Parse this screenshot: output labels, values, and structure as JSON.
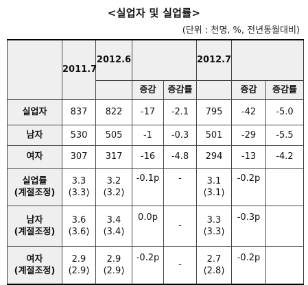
{
  "title": "<실업자 및 실업률>",
  "unit": "(단위 : 천명, %, 전년동월대비)",
  "headers": {
    "period_2011": "2011.7",
    "period_2012_6": "2012.6",
    "period_2012_7": "2012.7",
    "change": "증감",
    "change_rate": "증감률"
  },
  "rows": [
    {
      "label": "실업자",
      "v2011": "837",
      "v2012_6": "822",
      "change1": "-17",
      "rate1": "-2.1",
      "v2012_7": "795",
      "change2": "-42",
      "rate2": "-5.0"
    },
    {
      "label": "남자",
      "v2011": "530",
      "v2012_6": "505",
      "change1": "-1",
      "rate1": "-0.3",
      "v2012_7": "501",
      "change2": "-29",
      "rate2": "-5.5"
    },
    {
      "label": "여자",
      "v2011": "307",
      "v2012_6": "317",
      "change1": "-16",
      "rate1": "-4.8",
      "v2012_7": "294",
      "change2": "-13",
      "rate2": "-4.2"
    },
    {
      "label": "실업률",
      "label_sub": "(계절조정)",
      "v2011": "3.3",
      "v2011_sa": "(3.3)",
      "v2012_6": "3.2",
      "v2012_6_sa": "(3.2)",
      "change1": "-0.1p",
      "rate1": "-",
      "v2012_7": "3.1",
      "v2012_7_sa": "(3.1)",
      "change2": "-0.2p",
      "rate2": ""
    },
    {
      "label": "남자",
      "label_sub": "(계절조정)",
      "v2011": "3.6",
      "v2011_sa": "(3.6)",
      "v2012_6": "3.4",
      "v2012_6_sa": "(3.4)",
      "change1": "0.0p",
      "rate1": "-",
      "v2012_7": "3.3",
      "v2012_7_sa": "(3.3)",
      "change2": "-0.3p",
      "rate2": ""
    },
    {
      "label": "여자",
      "label_sub": "(계절조정)",
      "v2011": "2.9",
      "v2011_sa": "(2.9)",
      "v2012_6": "2.9",
      "v2012_6_sa": "(2.9)",
      "change1": "-0.2p",
      "rate1": "-",
      "v2012_7": "2.7",
      "v2012_7_sa": "(2.8)",
      "change2": "-0.2p",
      "rate2": ""
    }
  ]
}
